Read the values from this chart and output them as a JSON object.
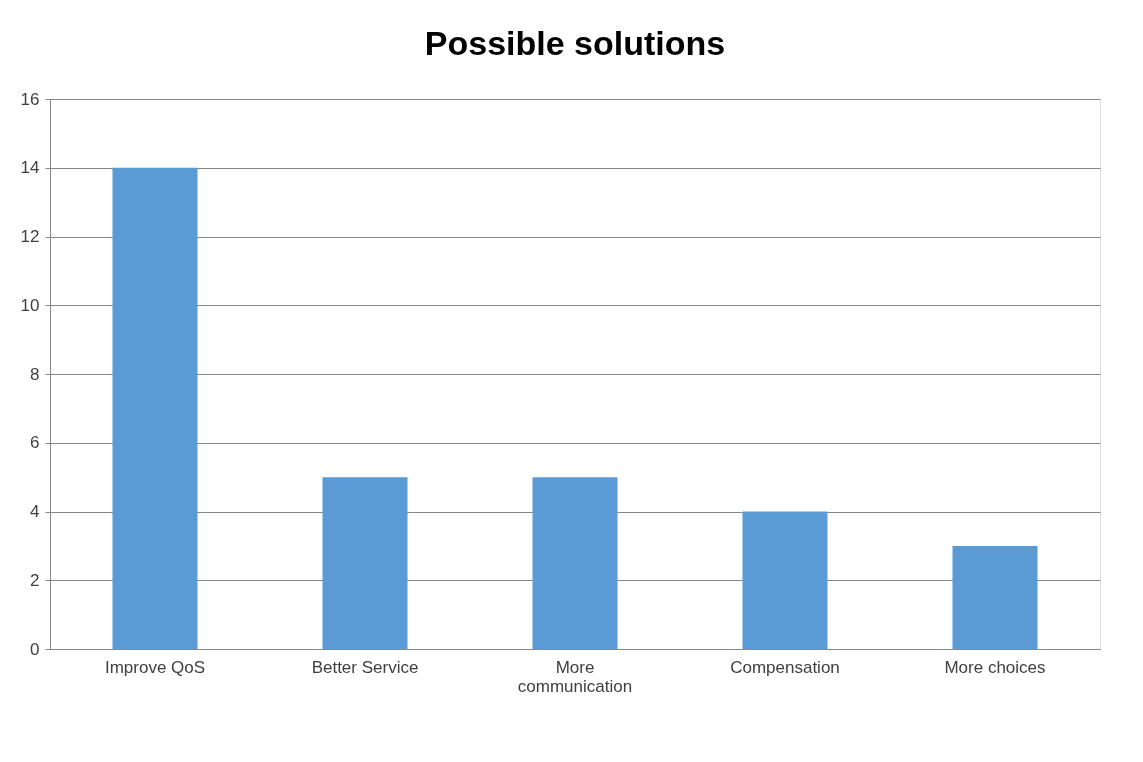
{
  "chart_data": {
    "type": "bar",
    "title": "Possible solutions",
    "categories": [
      "Improve QoS",
      "Better Service",
      "More communication",
      "Compensation",
      "More choices"
    ],
    "values": [
      14,
      5,
      5,
      4,
      3
    ],
    "color": "#5b9bd5",
    "ylim": [
      0,
      16
    ],
    "yticks": [
      0,
      2,
      4,
      6,
      8,
      10,
      12,
      14,
      16
    ],
    "grid": "y"
  }
}
